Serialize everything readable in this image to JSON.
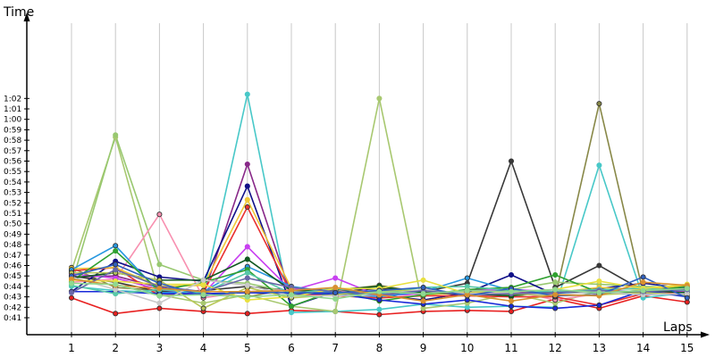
{
  "chart_data": {
    "type": "line",
    "ylabel": "Time",
    "xlabel": "Laps",
    "x": [
      1,
      2,
      3,
      4,
      5,
      6,
      7,
      8,
      9,
      10,
      11,
      12,
      13,
      14,
      15
    ],
    "x_tick_labels": [
      "1",
      "2",
      "3",
      "4",
      "5",
      "6",
      "7",
      "8",
      "9",
      "10",
      "11",
      "12",
      "13",
      "14",
      "15"
    ],
    "y_unit": "seconds",
    "ylim": [
      40,
      63.5
    ],
    "y_ticks": [
      41,
      42,
      43,
      44,
      45,
      46,
      47,
      48,
      49,
      50,
      51,
      52,
      53,
      54,
      55,
      56,
      57,
      58,
      59,
      60,
      61,
      62
    ],
    "y_tick_labels": [
      "0:41",
      "0:42",
      "0:43",
      "0:44",
      "0:45",
      "0:46",
      "0:47",
      "0:48",
      "0:49",
      "0:50",
      "0:51",
      "0:52",
      "0:53",
      "0:54",
      "0:55",
      "0:56",
      "0:57",
      "0:58",
      "0:59",
      "1:00",
      "1:01",
      "1:02"
    ],
    "grid": "vertical",
    "legend": "none",
    "series": [
      {
        "color": "#e82020",
        "values": [
          42.9,
          41.4,
          41.9,
          41.6,
          41.4,
          41.7,
          41.6,
          41.3,
          41.6,
          41.7,
          41.6,
          42.8,
          41.9,
          43.1,
          42.5
        ]
      },
      {
        "color": "#48c8c8",
        "values": [
          44.0,
          43.6,
          43.4,
          43.4,
          62.4,
          41.5,
          41.6,
          41.8,
          42.3,
          42.0,
          42.1,
          42.0,
          55.6,
          42.9,
          43.4
        ]
      },
      {
        "color": "#a8c870",
        "values": [
          45.5,
          58.3,
          43.2,
          42.4,
          43.2,
          42.1,
          41.6,
          62.0,
          41.9,
          42.4,
          43.3,
          42.4,
          43.6,
          43.9,
          43.5
        ]
      },
      {
        "color": "#888848",
        "values": [
          45.8,
          43.9,
          43.6,
          43.4,
          43.0,
          43.8,
          43.6,
          44.1,
          43.4,
          43.2,
          43.6,
          43.0,
          61.5,
          43.4,
          43.7
        ]
      },
      {
        "color": "#383838",
        "values": [
          45.0,
          44.4,
          43.5,
          43.6,
          44.0,
          43.6,
          43.5,
          43.8,
          43.5,
          44.3,
          56.0,
          43.9,
          46.0,
          43.6,
          43.9
        ]
      },
      {
        "color": "#98c870",
        "values": [
          44.2,
          58.5,
          46.1,
          44.6,
          44.3,
          43.4,
          43.3,
          43.5,
          43.4,
          43.5,
          43.7,
          44.4,
          44.2,
          44.0,
          43.9
        ]
      },
      {
        "color": "#f890b0",
        "values": [
          44.4,
          44.7,
          50.9,
          42.9,
          43.5,
          43.7,
          43.6,
          43.1,
          43.3,
          43.5,
          43.6,
          42.7,
          43.3,
          43.6,
          43.2
        ]
      },
      {
        "color": "#882888",
        "values": [
          44.9,
          45.0,
          43.9,
          43.2,
          55.7,
          43.1,
          43.3,
          43.2,
          43.3,
          43.3,
          43.5,
          43.3,
          43.6,
          43.4,
          43.5
        ]
      },
      {
        "color": "#101088",
        "values": [
          43.5,
          46.4,
          44.9,
          44.5,
          53.6,
          42.1,
          43.5,
          43.2,
          42.7,
          43.4,
          45.1,
          43.2,
          43.8,
          44.3,
          43.8
        ]
      },
      {
        "color": "#e83030",
        "values": [
          45.5,
          45.8,
          43.1,
          43.4,
          51.6,
          43.3,
          43.1,
          42.9,
          43.1,
          43.1,
          43.0,
          43.0,
          42.2,
          43.3,
          43.5
        ]
      },
      {
        "color": "#f0c838",
        "values": [
          45.7,
          45.8,
          44.0,
          44.1,
          52.3,
          43.8,
          43.3,
          43.6,
          43.2,
          43.4,
          43.6,
          43.4,
          43.9,
          43.7,
          44.1
        ]
      },
      {
        "color": "#c840f0",
        "values": [
          45.2,
          44.8,
          43.7,
          43.3,
          47.8,
          43.6,
          44.8,
          43.1,
          43.3,
          43.6,
          43.7,
          43.5,
          43.7,
          43.3,
          43.6
        ]
      },
      {
        "color": "#2898e0",
        "values": [
          45.6,
          47.9,
          43.4,
          43.5,
          45.9,
          44.0,
          43.4,
          43.0,
          43.5,
          44.8,
          43.6,
          43.4,
          43.4,
          43.2,
          43.3
        ]
      },
      {
        "color": "#30a030",
        "values": [
          44.5,
          47.4,
          43.6,
          44.4,
          45.6,
          42.1,
          43.6,
          42.6,
          43.2,
          43.7,
          43.9,
          45.1,
          43.4,
          43.5,
          44.0
        ]
      },
      {
        "color": "#105820",
        "values": [
          44.8,
          45.3,
          44.6,
          44.6,
          46.6,
          43.6,
          43.7,
          44.0,
          43.4,
          43.3,
          43.1,
          43.5,
          43.4,
          43.6,
          43.4
        ]
      },
      {
        "color": "#1828d8",
        "values": [
          43.5,
          43.5,
          43.3,
          43.3,
          43.4,
          43.3,
          43.3,
          42.7,
          42.3,
          42.7,
          42.1,
          41.9,
          42.2,
          43.6,
          43.0
        ]
      },
      {
        "color": "#58c8a8",
        "values": [
          44.1,
          43.3,
          43.7,
          43.4,
          45.3,
          43.3,
          43.8,
          43.3,
          43.9,
          44.0,
          43.6,
          43.5,
          43.7,
          43.8,
          43.6
        ]
      },
      {
        "color": "#e8e040",
        "values": [
          44.6,
          44.5,
          44.2,
          44.2,
          42.7,
          43.0,
          43.8,
          43.8,
          44.6,
          43.3,
          43.5,
          43.7,
          44.5,
          43.8,
          44.2
        ]
      },
      {
        "color": "#b8c858",
        "values": [
          45.3,
          45.3,
          44.6,
          41.9,
          43.9,
          42.9,
          43.2,
          43.6,
          43.6,
          43.4,
          43.3,
          43.1,
          43.2,
          43.4,
          43.2
        ]
      },
      {
        "color": "#c8c8c8",
        "values": [
          44.9,
          43.7,
          42.4,
          44.6,
          44.1,
          43.1,
          43.1,
          43.2,
          43.7,
          43.3,
          43.4,
          43.2,
          43.5,
          43.2,
          43.3
        ]
      },
      {
        "color": "#6868a8",
        "values": [
          43.4,
          45.6,
          44.0,
          43.5,
          44.8,
          43.9,
          43.5,
          43.2,
          43.6,
          43.2,
          43.3,
          43.4,
          43.6,
          43.5,
          43.7
        ]
      },
      {
        "color": "#3060c0",
        "values": [
          45.0,
          46.1,
          44.3,
          43.1,
          43.5,
          43.4,
          43.4,
          43.6,
          43.9,
          43.1,
          43.8,
          43.1,
          43.2,
          44.9,
          42.9
        ]
      },
      {
        "color": "#d89030",
        "values": [
          44.7,
          44.1,
          43.8,
          43.5,
          43.5,
          43.6,
          43.9,
          43.2,
          42.6,
          43.2,
          42.6,
          43.2,
          43.1,
          44.4,
          44.1
        ]
      },
      {
        "color": "#90d890",
        "values": [
          44.3,
          44.2,
          43.1,
          43.2,
          43.0,
          43.2,
          42.8,
          43.5,
          43.3,
          43.6,
          43.5,
          43.7,
          43.4,
          43.6,
          43.8
        ]
      }
    ]
  }
}
